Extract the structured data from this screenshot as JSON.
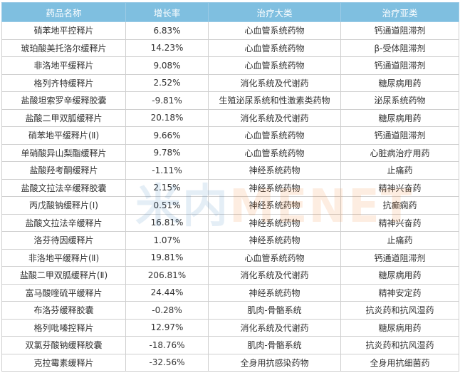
{
  "watermark": {
    "text_cn": "米内",
    "text_en": "MENET"
  },
  "header": [
    "药品名称",
    "增长率",
    "治疗大类",
    "治疗亚类"
  ],
  "colors": {
    "header_bg": "#7fbfe0",
    "header_text": "#ffffff",
    "border": "#cfcfcf"
  },
  "rows": [
    [
      "硝苯地平控释片",
      "6.83%",
      "心血管系统药物",
      "钙通道阻滞剂"
    ],
    [
      "琥珀酸美托洛尔缓释片",
      "14.23%",
      "心血管系统药物",
      "β-受体阻滞剂"
    ],
    [
      "非洛地平缓释片",
      "9.08%",
      "心血管系统药物",
      "钙通道阻滞剂"
    ],
    [
      "格列齐特缓释片",
      "2.52%",
      "消化系统及代谢药",
      "糖尿病用药"
    ],
    [
      "盐酸坦索罗辛缓释胶囊",
      "-9.81%",
      "生殖泌尿系统和性激素类药物",
      "泌尿系统药物"
    ],
    [
      "盐酸二甲双胍缓释片",
      "20.18%",
      "消化系统及代谢药",
      "糖尿病用药"
    ],
    [
      "硝苯地平缓释片(Ⅱ)",
      "9.66%",
      "心血管系统药物",
      "钙通道阻滞剂"
    ],
    [
      "单硝酸异山梨酯缓释片",
      "9.78%",
      "心血管系统药物",
      "心脏病治疗用药"
    ],
    [
      "盐酸羟考酮缓释片",
      "-1.11%",
      "神经系统药物",
      "止痛药"
    ],
    [
      "盐酸文拉法辛缓释胶囊",
      "2.15%",
      "神经系统药物",
      "精神兴奋药"
    ],
    [
      "丙戊酸钠缓释片(Ⅰ)",
      "0.51%",
      "神经系统药物",
      "抗癫痫药"
    ],
    [
      "盐酸文拉法辛缓释片",
      "16.81%",
      "神经系统药物",
      "精神兴奋药"
    ],
    [
      "洛芬待因缓释片",
      "1.07%",
      "神经系统药物",
      "止痛药"
    ],
    [
      "非洛地平缓释片(Ⅱ)",
      "19.81%",
      "心血管系统药物",
      "钙通道阻滞剂"
    ],
    [
      "盐酸二甲双胍缓释片(Ⅱ)",
      "206.81%",
      "消化系统及代谢药",
      "糖尿病用药"
    ],
    [
      "富马酸喹硫平缓释片",
      "24.44%",
      "神经系统药物",
      "精神安定药"
    ],
    [
      "布洛芬缓释胶囊",
      "-0.28%",
      "肌肉-骨骼系统",
      "抗炎药和抗风湿药"
    ],
    [
      "格列吡嗪控释片",
      "12.97%",
      "消化系统及代谢药",
      "糖尿病用药"
    ],
    [
      "双氯芬酸钠缓释胶囊",
      "-18.76%",
      "肌肉-骨骼系统",
      "抗炎药和抗风湿药"
    ],
    [
      "克拉霉素缓释片",
      "-32.56%",
      "全身用抗感染药物",
      "全身用抗细菌药"
    ]
  ]
}
